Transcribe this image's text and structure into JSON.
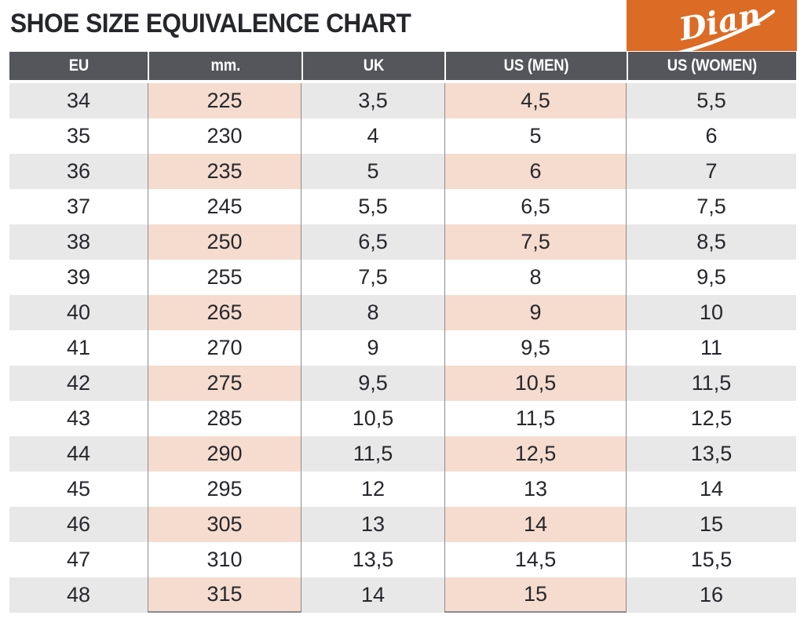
{
  "title": "SHOE SIZE EQUIVALENCE CHART",
  "brand": "Dian",
  "colors": {
    "brand_orange": "#DC6B26",
    "header_bg": "#54565B",
    "row_gray": "#E8E8E9",
    "row_pink": "#F5DCCF",
    "border_gray": "#8A8B8E",
    "text_dark": "#26272B"
  },
  "chart_data": {
    "type": "table",
    "title": "SHOE SIZE EQUIVALENCE CHART",
    "columns": [
      "EU",
      "mm.",
      "UK",
      "US (MEN)",
      "US (WOMEN)"
    ],
    "highlighted_columns": [
      "mm.",
      "US (MEN)"
    ],
    "rows": [
      [
        "34",
        "225",
        "3,5",
        "4,5",
        "5,5"
      ],
      [
        "35",
        "230",
        "4",
        "5",
        "6"
      ],
      [
        "36",
        "235",
        "5",
        "6",
        "7"
      ],
      [
        "37",
        "245",
        "5,5",
        "6,5",
        "7,5"
      ],
      [
        "38",
        "250",
        "6,5",
        "7,5",
        "8,5"
      ],
      [
        "39",
        "255",
        "7,5",
        "8",
        "9,5"
      ],
      [
        "40",
        "265",
        "8",
        "9",
        "10"
      ],
      [
        "41",
        "270",
        "9",
        "9,5",
        "11"
      ],
      [
        "42",
        "275",
        "9,5",
        "10,5",
        "11,5"
      ],
      [
        "43",
        "285",
        "10,5",
        "11,5",
        "12,5"
      ],
      [
        "44",
        "290",
        "11,5",
        "12,5",
        "13,5"
      ],
      [
        "45",
        "295",
        "12",
        "13",
        "14"
      ],
      [
        "46",
        "305",
        "13",
        "14",
        "15"
      ],
      [
        "47",
        "310",
        "13,5",
        "14,5",
        "15,5"
      ],
      [
        "48",
        "315",
        "14",
        "15",
        "16"
      ]
    ]
  }
}
